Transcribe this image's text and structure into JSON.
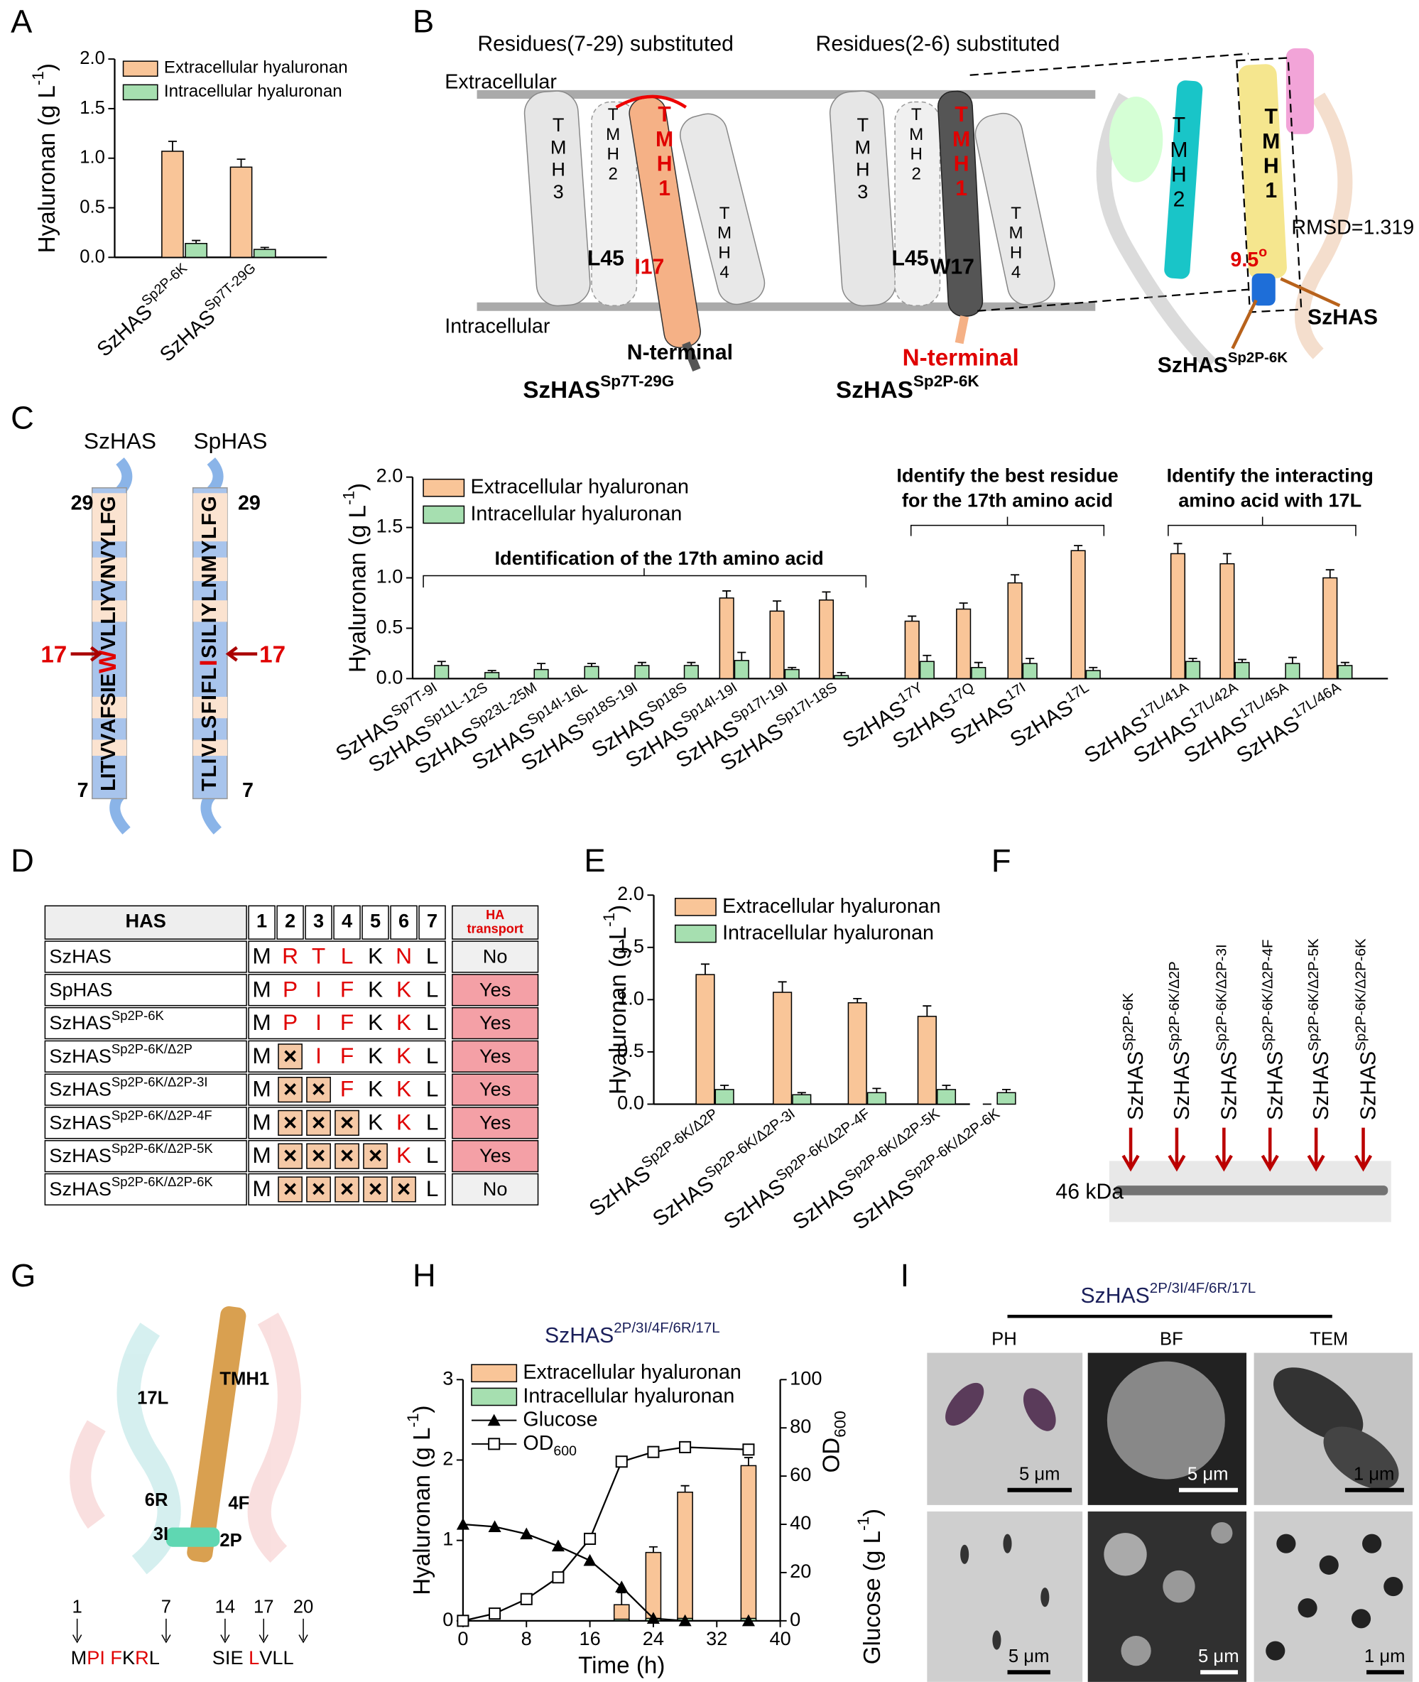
{
  "panel_labels": [
    "A",
    "B",
    "C",
    "D",
    "E",
    "F",
    "G",
    "H",
    "I"
  ],
  "chart_data": [
    {
      "type": "bar",
      "ylabel": "Hyaluronan (g L^-1^)",
      "categories": [
        "SzHAS^Sp2P-6K^",
        "SzHAS^Sp7T-29G^"
      ],
      "series": [
        {
          "name": "Extracellular hyaluronan",
          "color": "#f9c598",
          "values": [
            1.07,
            0.91
          ],
          "errors": [
            0.1,
            0.08
          ]
        },
        {
          "name": "Intracellular hyaluronan",
          "color": "#a6dfb0",
          "values": [
            0.14,
            0.08
          ],
          "errors": [
            0.03,
            0.02
          ]
        }
      ],
      "ylim": [
        0,
        2
      ],
      "yticks": [
        {
          "value": 0,
          "label": "0.0"
        },
        {
          "value": 0.5,
          "label": "0.5"
        },
        {
          "value": 1,
          "label": "1.0"
        },
        {
          "value": 1.5,
          "label": "1.5"
        },
        {
          "value": 2,
          "label": "2.0"
        }
      ]
    },
    {
      "type": "bar",
      "ylabel": "Hyaluronan (g L^-1^)",
      "categories": [
        "SzHAS^Sp7T-9I^",
        "SzHAS^Sp11L-12S^",
        "SzHAS^Sp23L-25M^",
        "SzHAS^Sp14I-16L^",
        "SzHAS^Sp18S-19I^",
        "SzHAS^Sp18S^",
        "SzHAS^Sp14I-19I^",
        "SzHAS^Sp17I-19I^",
        "SzHAS^Sp17I-18S^",
        "SzHAS^17Y^",
        "SzHAS^17Q^",
        "SzHAS^17I^",
        "SzHAS^17L^",
        "SzHAS^17L/41A^",
        "SzHAS^17L/42A^",
        "SzHAS^17L/45A^",
        "SzHAS^17L/46A^"
      ],
      "series": [
        {
          "name": "Extracellular hyaluronan",
          "color": "#f9c598",
          "values": [
            0,
            0,
            0,
            0,
            0,
            0,
            0.8,
            0.67,
            0.78,
            0.57,
            0.69,
            0.95,
            1.27,
            1.24,
            1.14,
            0,
            1.0
          ],
          "errors": [
            0,
            0,
            0,
            0,
            0,
            0,
            0.07,
            0.1,
            0.08,
            0.05,
            0.06,
            0.08,
            0.05,
            0.1,
            0.1,
            0,
            0.08
          ]
        },
        {
          "name": "Intracellular hyaluronan",
          "color": "#a6dfb0",
          "values": [
            0.13,
            0.06,
            0.09,
            0.12,
            0.13,
            0.13,
            0.18,
            0.09,
            0.03,
            0.17,
            0.11,
            0.15,
            0.08,
            0.17,
            0.16,
            0.15,
            0.13
          ],
          "errors": [
            0.04,
            0.02,
            0.06,
            0.03,
            0.03,
            0.03,
            0.08,
            0.02,
            0.03,
            0.06,
            0.05,
            0.05,
            0.03,
            0.03,
            0.03,
            0.06,
            0.03
          ]
        }
      ],
      "annotations": [
        "Identification of the 17th amino acid",
        "Identify the best residue",
        "for the 17th amino acid",
        "Identify the interacting",
        "amino acid with 17L"
      ],
      "ylim": [
        0,
        2
      ],
      "yticks": [
        {
          "value": 0,
          "label": "0.0"
        },
        {
          "value": 0.5,
          "label": "0.5"
        },
        {
          "value": 1,
          "label": "1.0"
        },
        {
          "value": 1.5,
          "label": "1.5"
        },
        {
          "value": 2,
          "label": "2.0"
        }
      ]
    },
    {
      "type": "bar",
      "ylabel": "Hyaluronan (g L^-1^)",
      "categories": [
        "SzHAS^Sp2P-6K/Δ2P^",
        "SzHAS^Sp2P-6K/Δ2P-3I^",
        "SzHAS^Sp2P-6K/Δ2P-4F^",
        "SzHAS^Sp2P-6K/Δ2P-5K^",
        "SzHAS^Sp2P-6K/Δ2P-6K^"
      ],
      "series": [
        {
          "name": "Extracellular hyaluronan",
          "color": "#f9c598",
          "values": [
            1.24,
            1.07,
            0.97,
            0.84,
            0
          ],
          "errors": [
            0.1,
            0.1,
            0.04,
            0.1,
            0
          ]
        },
        {
          "name": "Intracellular hyaluronan",
          "color": "#a6dfb0",
          "values": [
            0.14,
            0.09,
            0.11,
            0.14,
            0.11
          ],
          "errors": [
            0.04,
            0.02,
            0.04,
            0.04,
            0.03
          ]
        }
      ],
      "ylim": [
        0,
        2
      ],
      "yticks": [
        {
          "value": 0,
          "label": "0.0"
        },
        {
          "value": 0.5,
          "label": "0.5"
        },
        {
          "value": 1,
          "label": "1.0"
        },
        {
          "value": 1.5,
          "label": "1.5"
        },
        {
          "value": 2,
          "label": "2.0"
        }
      ]
    },
    {
      "type": "combo",
      "title": "SzHAS^2P/3I/4F/6R/17L^",
      "xlabel": "Time (h)",
      "ylabel": "Hyaluronan (g L^-1^)",
      "y2labels": [
        "OD~600~",
        "Glucose  (g L^-1^)"
      ],
      "series": [
        {
          "name": "Extracellular hyaluronan",
          "type": "bar",
          "color": "#f9c598",
          "x": [
            20,
            24,
            28,
            36
          ],
          "values": [
            0.2,
            0.85,
            1.6,
            1.93
          ],
          "errors": [
            0.15,
            0.07,
            0.08,
            0.1
          ]
        },
        {
          "name": "Intracellular hyaluronan",
          "type": "bar",
          "color": "#a6dfb0",
          "x": [
            20,
            24,
            28,
            36
          ],
          "values": [
            0.02,
            0.03,
            0.03,
            0.03
          ]
        },
        {
          "name": "Glucose",
          "type": "line",
          "marker": "triangle",
          "color": "#000000",
          "axis": "y2",
          "x": [
            0,
            4,
            8,
            12,
            16,
            20,
            24,
            28,
            36
          ],
          "values": [
            40,
            39,
            36,
            31,
            25,
            14,
            1,
            0,
            0
          ]
        },
        {
          "name": "OD~600~",
          "type": "line",
          "marker": "square",
          "color": "#000000",
          "axis": "y2",
          "x": [
            0,
            4,
            8,
            12,
            16,
            20,
            24,
            28,
            36
          ],
          "values": [
            0,
            3,
            9,
            18,
            34,
            66,
            70,
            72,
            71
          ]
        }
      ],
      "xlim": [
        0,
        40
      ],
      "xticks": [
        0,
        8,
        16,
        24,
        32,
        40
      ],
      "ylim": [
        0,
        3
      ],
      "yticks": [
        0,
        1,
        2,
        3
      ],
      "y2lim": [
        0,
        100
      ],
      "y2ticks": [
        0,
        20,
        40,
        60,
        80,
        100
      ]
    }
  ],
  "panel_b": {
    "titles": [
      "Residues(7-29) substituted",
      "Residues(2-6) substituted"
    ],
    "extracellular": "Extracellular",
    "intracellular": "Intracellular",
    "left": {
      "helices": [
        "TMH3",
        "TMH2",
        "TMH1",
        "TMH4"
      ],
      "l45": "L45",
      "residue": "I17",
      "n_terminal": "N-terminal",
      "name": "SzHAS^Sp7T-29G^"
    },
    "middle": {
      "helices": [
        "TMH3",
        "TMH2",
        "TMH1",
        "TMH4"
      ],
      "l45": "L45",
      "residue": "W17",
      "n_terminal": "N-terminal",
      "name": "SzHAS^Sp2P-6K^"
    },
    "right": {
      "helices": [
        "TMH2",
        "TMH1"
      ],
      "rmsd": "RMSD=1.319",
      "angle": "9.5^o^",
      "szhas": "SzHAS",
      "name": "SzHAS^Sp2P-6K^"
    }
  },
  "panel_c_seq": {
    "names": [
      "SzHAS",
      "SpHAS"
    ],
    "sequences": [
      "LITVVAFSIEWVLLIYVNVYLFG",
      "TLIVLSFIFLISILIYLNMYLFG"
    ],
    "start": "7",
    "end": "29",
    "site": "17"
  },
  "table": {
    "header": "HAS",
    "columns": [
      1,
      2,
      3,
      4,
      5,
      6,
      7
    ],
    "transport_header": [
      "HA",
      "transport"
    ],
    "rows": [
      {
        "name": "SzHAS",
        "residues": [
          "M",
          "R",
          "T",
          "L",
          "K",
          "N",
          "L"
        ],
        "transport": "No"
      },
      {
        "name": "SpHAS",
        "residues": [
          "M",
          "P",
          "I",
          "F",
          "K",
          "K",
          "L"
        ],
        "transport": "Yes"
      },
      {
        "name": "SzHAS^Sp2P-6K^",
        "residues": [
          "M",
          "P",
          "I",
          "F",
          "K",
          "K",
          "L"
        ],
        "transport": "Yes"
      },
      {
        "name": "SzHAS^Sp2P-6K/Δ2P^",
        "residues": [
          "M",
          "×",
          "I",
          "F",
          "K",
          "K",
          "L"
        ],
        "transport": "Yes"
      },
      {
        "name": "SzHAS^Sp2P-6K/Δ2P-3I^",
        "residues": [
          "M",
          "×",
          "×",
          "F",
          "K",
          "K",
          "L"
        ],
        "transport": "Yes"
      },
      {
        "name": "SzHAS^Sp2P-6K/Δ2P-4F^",
        "residues": [
          "M",
          "×",
          "×",
          "×",
          "K",
          "K",
          "L"
        ],
        "transport": "Yes"
      },
      {
        "name": "SzHAS^Sp2P-6K/Δ2P-5K^",
        "residues": [
          "M",
          "×",
          "×",
          "×",
          "×",
          "K",
          "L"
        ],
        "transport": "Yes"
      },
      {
        "name": "SzHAS^Sp2P-6K/Δ2P-6K^",
        "residues": [
          "M",
          "×",
          "×",
          "×",
          "×",
          "×",
          "L"
        ],
        "transport": "No"
      }
    ]
  },
  "blot": {
    "lanes": [
      "SzHAS^Sp2P-6K^",
      "SzHAS^Sp2P-6K/Δ2P^",
      "SzHAS^Sp2P-6K/Δ2P-3I^",
      "SzHAS^Sp2P-6K/Δ2P-4F^",
      "SzHAS^Sp2P-6K/Δ2P-5K^",
      "SzHAS^Sp2P-6K/Δ2P-6K^"
    ],
    "marker": "46 kDa"
  },
  "structure": {
    "labels": [
      "TMH1",
      "17L",
      "6R",
      "4F",
      "3I",
      "2P"
    ],
    "positions": [
      "1",
      "7",
      "14",
      "17",
      "20"
    ],
    "sequence": [
      "MPI FKRL",
      "SIE LVLL"
    ]
  },
  "microscopy": {
    "title": "SzHAS^2P/3I/4F/6R/17L^",
    "columns": [
      "PH",
      "BF",
      "TEM"
    ],
    "scale_bars": [
      "5 μm",
      "5 μm",
      "1 μm",
      "5 μm",
      "5 μm",
      "1 μm"
    ]
  }
}
